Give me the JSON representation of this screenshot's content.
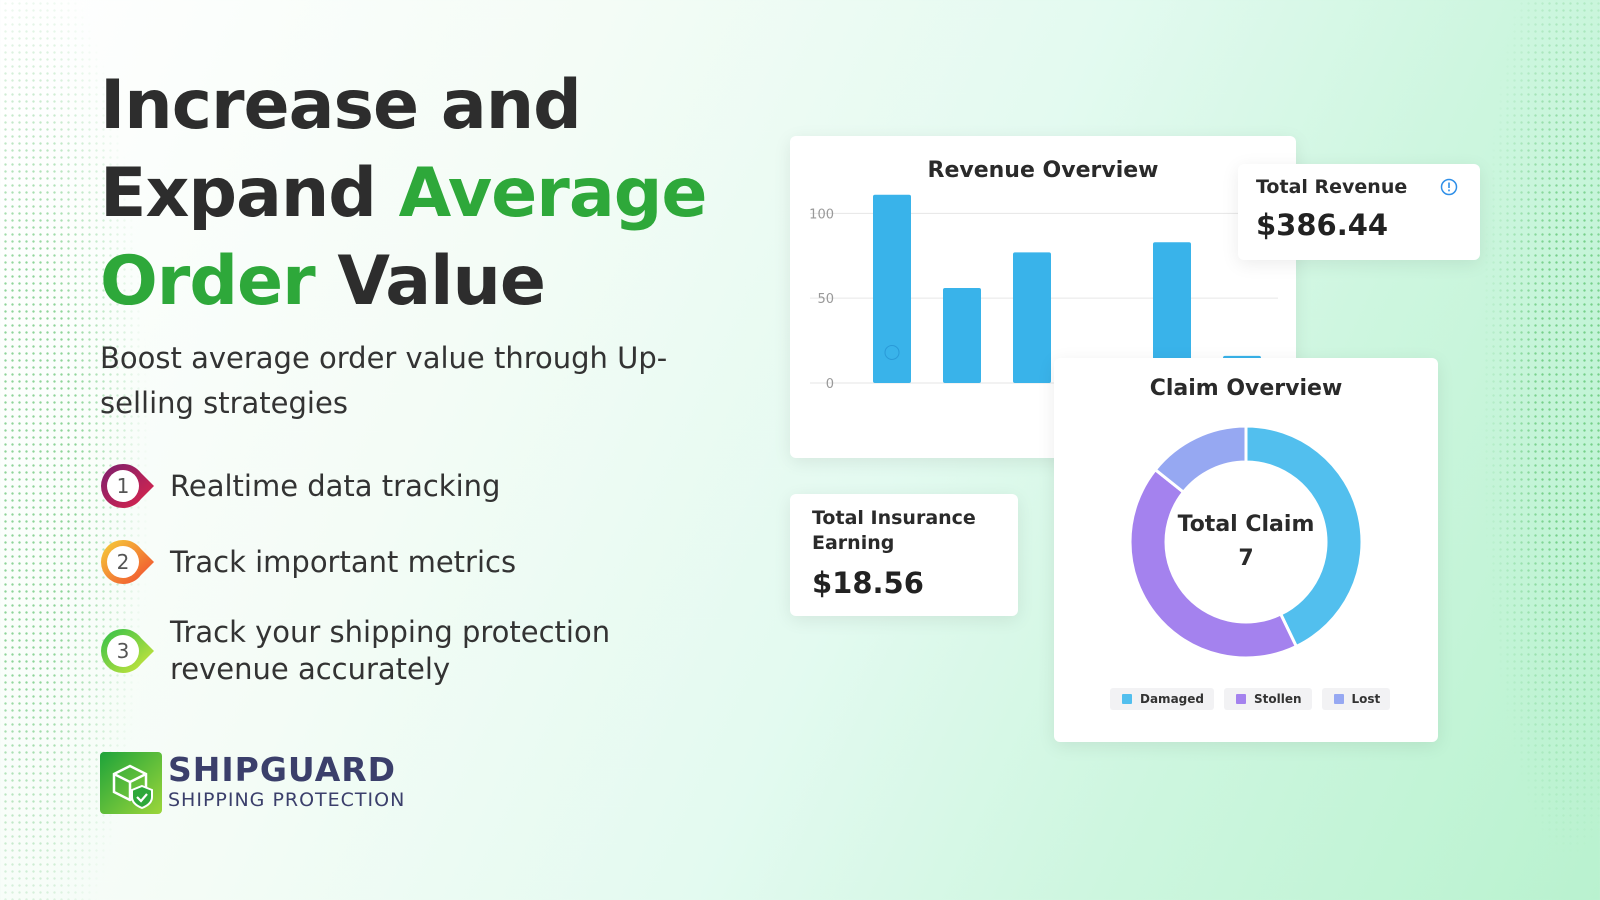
{
  "headline": {
    "line1": "Increase and",
    "line2_dark": "Expand ",
    "line2_accent": "Average",
    "line3_accent": "Order",
    "line3_dark": " Value"
  },
  "subheadline": "Boost average order value through Up-selling strategies",
  "features": [
    {
      "number": "1",
      "label": "Realtime data tracking"
    },
    {
      "number": "2",
      "label": "Track important metrics"
    },
    {
      "number": "3",
      "label": "Track your shipping protection revenue accurately"
    }
  ],
  "logo": {
    "name": "SHIPGUARD",
    "tagline": "SHIPPING PROTECTION"
  },
  "revenue_card": {
    "title": "Revenue Overview"
  },
  "total_revenue": {
    "title": "Total Revenue",
    "value": "$386.44",
    "icon": "info-icon"
  },
  "insurance": {
    "title_line1": "Total Insurance",
    "title_line2": "Earning",
    "value": "$18.56"
  },
  "claim_card": {
    "title": "Claim Overview",
    "center_label": "Total Claim",
    "center_value": "7"
  },
  "chart_data": [
    {
      "type": "bar",
      "title": "Revenue Overview",
      "categories": [
        "",
        "",
        "",
        "",
        "",
        ""
      ],
      "values": [
        111,
        56,
        77,
        13,
        83,
        16
      ],
      "yticks": [
        0,
        50,
        100
      ],
      "ylim": [
        0,
        112
      ],
      "grid": true,
      "color": "#39b3ea"
    },
    {
      "type": "pie",
      "title": "Claim Overview",
      "donut": true,
      "series": [
        {
          "name": "Damaged",
          "value": 3,
          "color": "#52bfee"
        },
        {
          "name": "Stollen",
          "value": 3,
          "color": "#a482ee"
        },
        {
          "name": "Lost",
          "value": 1,
          "color": "#96a8f2"
        }
      ],
      "legend": "bottom"
    }
  ],
  "colors": {
    "accent": "#2ea83a",
    "dark_text": "#2d2d2d",
    "brand": "#3b3f6b"
  }
}
